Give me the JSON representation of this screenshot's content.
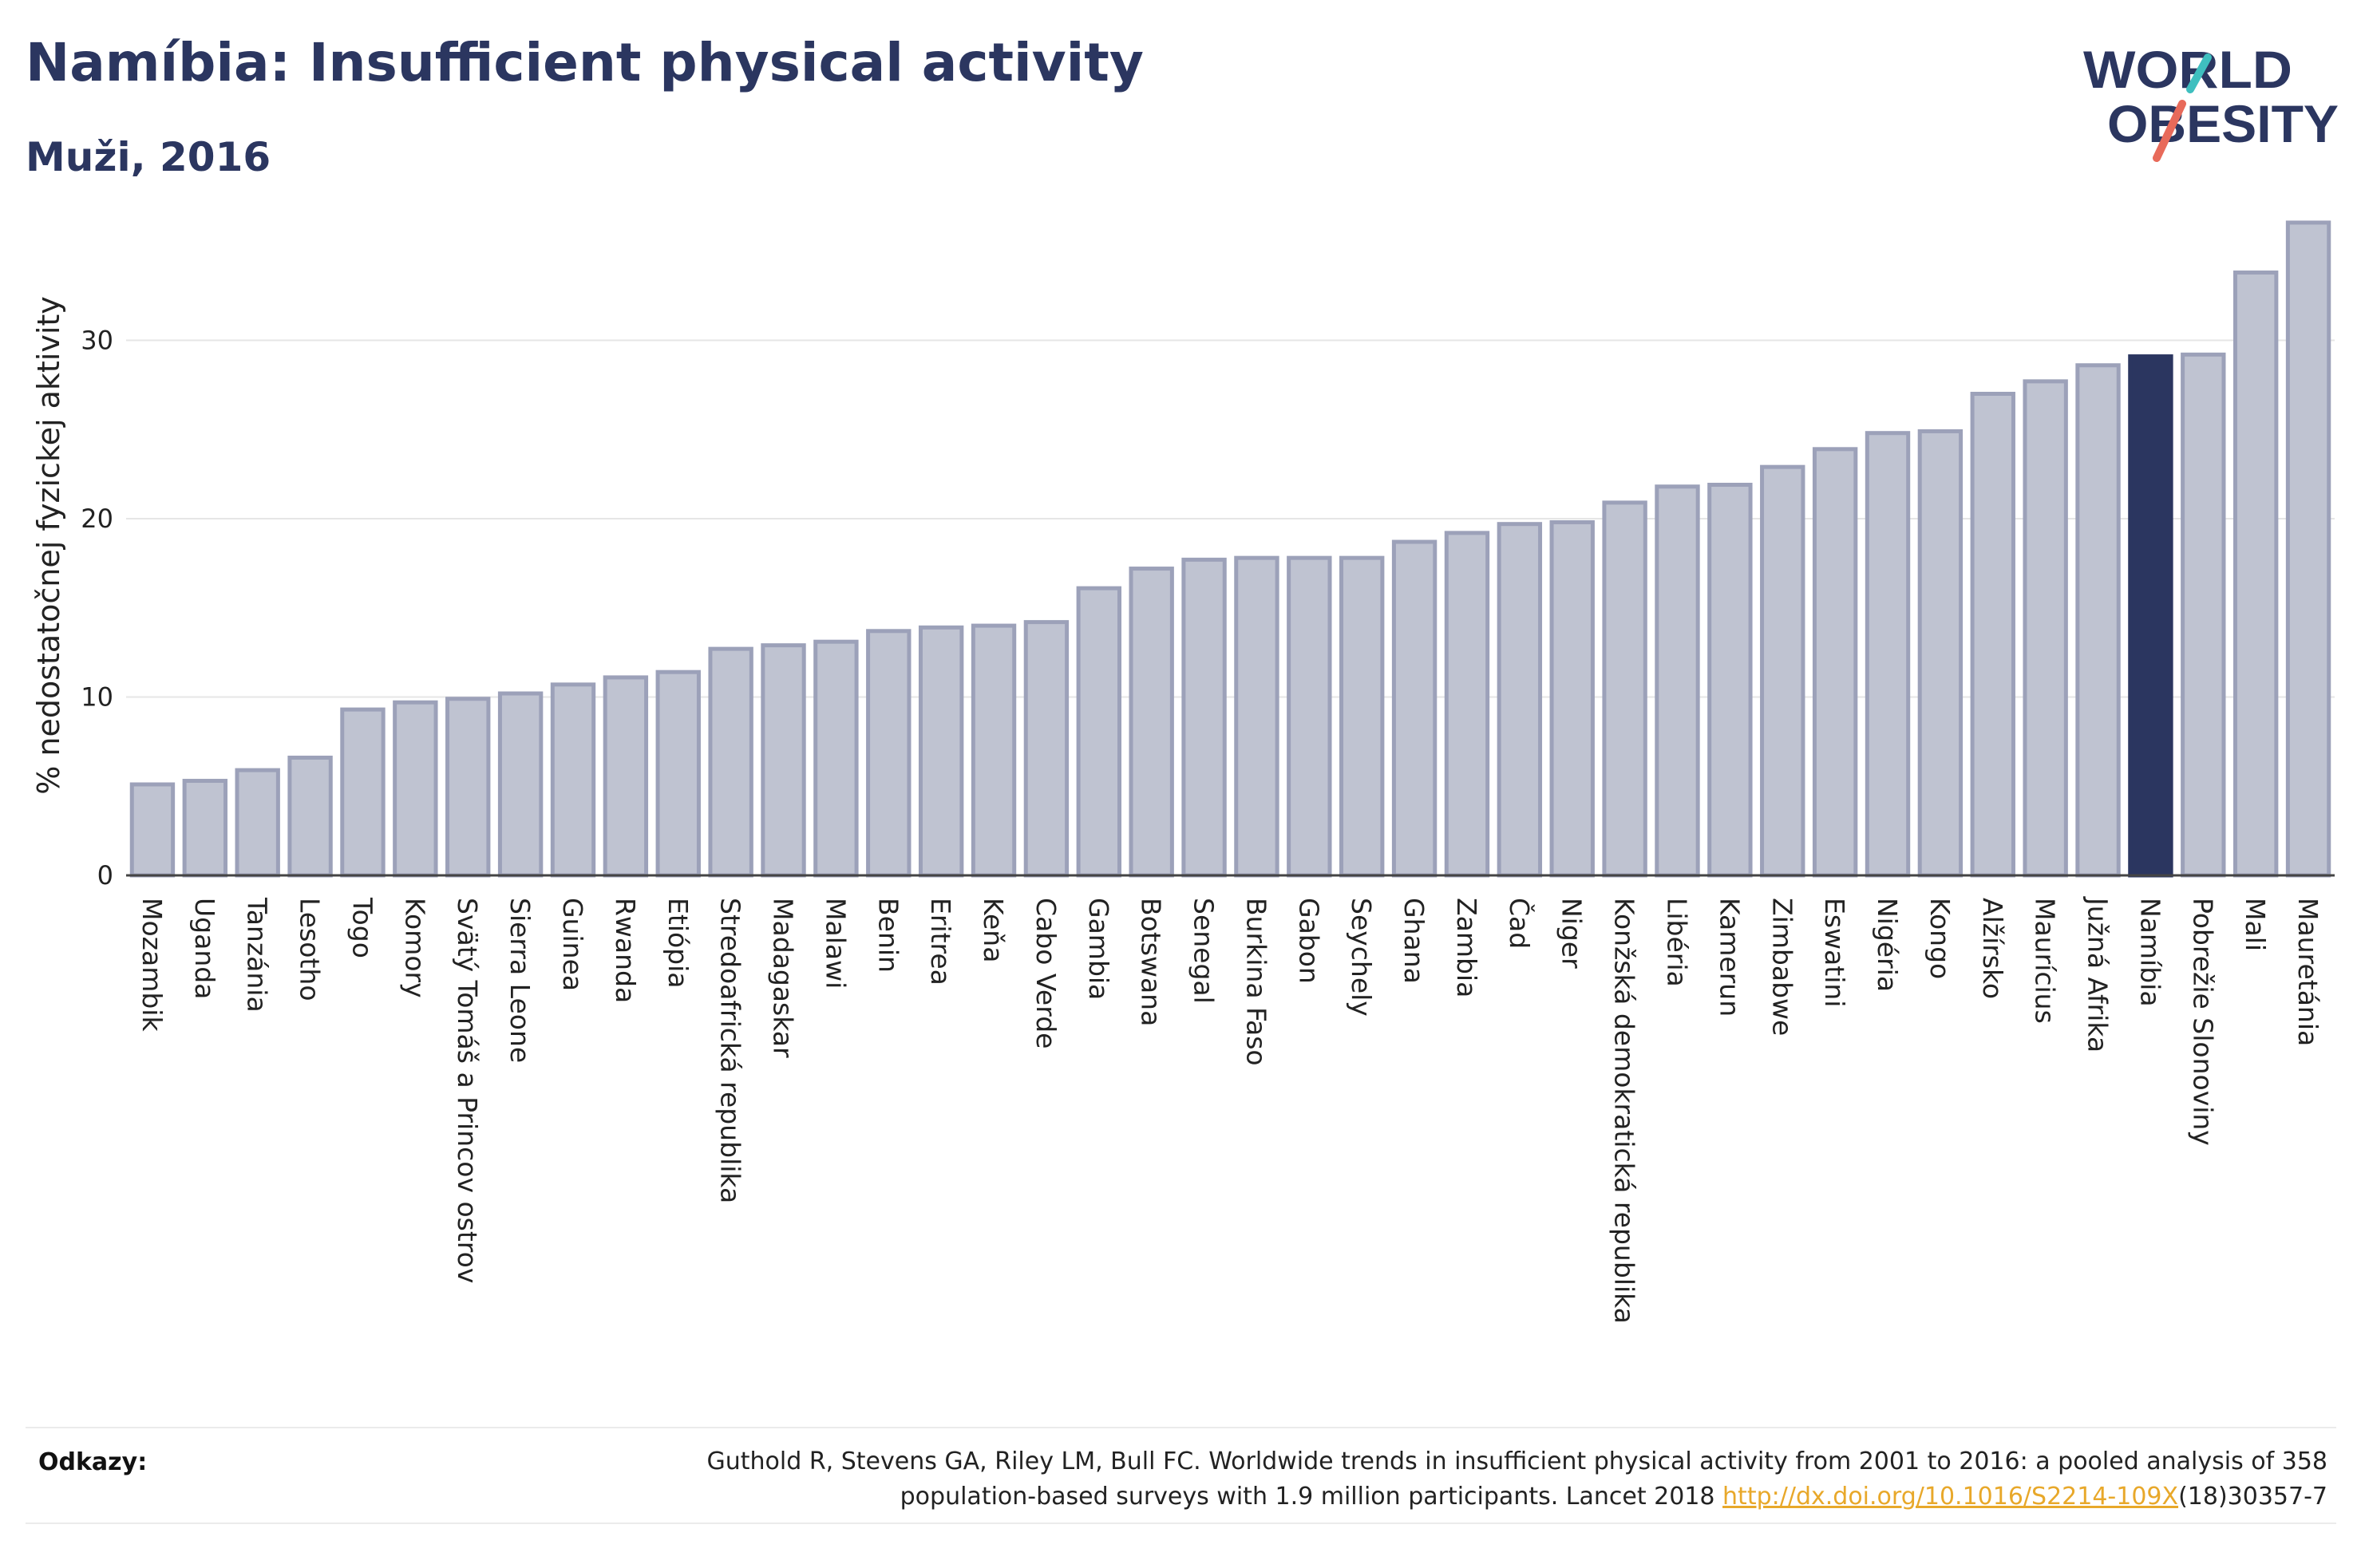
{
  "header": {
    "title": "Namíbia: Insufficient physical activity",
    "subtitle": "Muži, 2016"
  },
  "logo": {
    "line1": "WORLD",
    "line2": "OBESITY"
  },
  "colors": {
    "bar_default": "#bfc3d1",
    "bar_default_stroke": "#9ca1b9",
    "bar_highlight": "#2b3660",
    "text": "#2b3660",
    "link": "#e8a82a",
    "logo_teal": "#3fbfbf",
    "logo_coral": "#e86a5a"
  },
  "chart_data": {
    "type": "bar",
    "ylabel": "% nedostatočnej fyzickej aktivity",
    "ylim": [
      0,
      37
    ],
    "yticks": [
      0,
      10,
      20,
      30
    ],
    "grid": true,
    "highlight": "Namíbia",
    "categories": [
      "Mozambik",
      "Uganda",
      "Tanzánia",
      "Lesotho",
      "Togo",
      "Komory",
      "Svätý Tomáš a Princov ostrov",
      "Sierra Leone",
      "Guinea",
      "Rwanda",
      "Etiópia",
      "Stredoafrická republika",
      "Madagaskar",
      "Malawi",
      "Benin",
      "Eritrea",
      "Keňa",
      "Cabo Verde",
      "Gambia",
      "Botswana",
      "Senegal",
      "Burkina Faso",
      "Gabon",
      "Seychely",
      "Ghana",
      "Zambia",
      "Čad",
      "Niger",
      "Konžská demokratická republika",
      "Libéria",
      "Kamerun",
      "Zimbabwe",
      "Eswatini",
      "Nigéria",
      "Kongo",
      "Alžírsko",
      "Maurícius",
      "Južná Afrika",
      "Namíbia",
      "Pobrežie Slonoviny",
      "Mali",
      "Mauretánia"
    ],
    "values": [
      5.1,
      5.3,
      5.9,
      6.6,
      9.3,
      9.7,
      9.9,
      10.2,
      10.7,
      11.1,
      11.4,
      12.7,
      12.9,
      13.1,
      13.7,
      13.9,
      14.0,
      14.2,
      16.1,
      17.2,
      17.7,
      17.8,
      17.8,
      17.8,
      18.7,
      19.2,
      19.7,
      19.8,
      20.9,
      21.8,
      21.9,
      22.9,
      23.9,
      24.8,
      24.9,
      27.0,
      27.7,
      28.6,
      29.1,
      29.2,
      33.8,
      36.6
    ]
  },
  "references": {
    "label": "Odkazy:",
    "text_line1": "Guthold R, Stevens GA, Riley LM, Bull FC. Worldwide trends in insufficient physical activity from 2001 to 2016: a pooled analysis of 358",
    "text_line2_prefix": "population-based surveys with 1.9 million participants. Lancet 2018 ",
    "link": "http://dx.doi.org/10.1016/S2214-109X",
    "text_line2_suffix": "(18)30357-7"
  }
}
